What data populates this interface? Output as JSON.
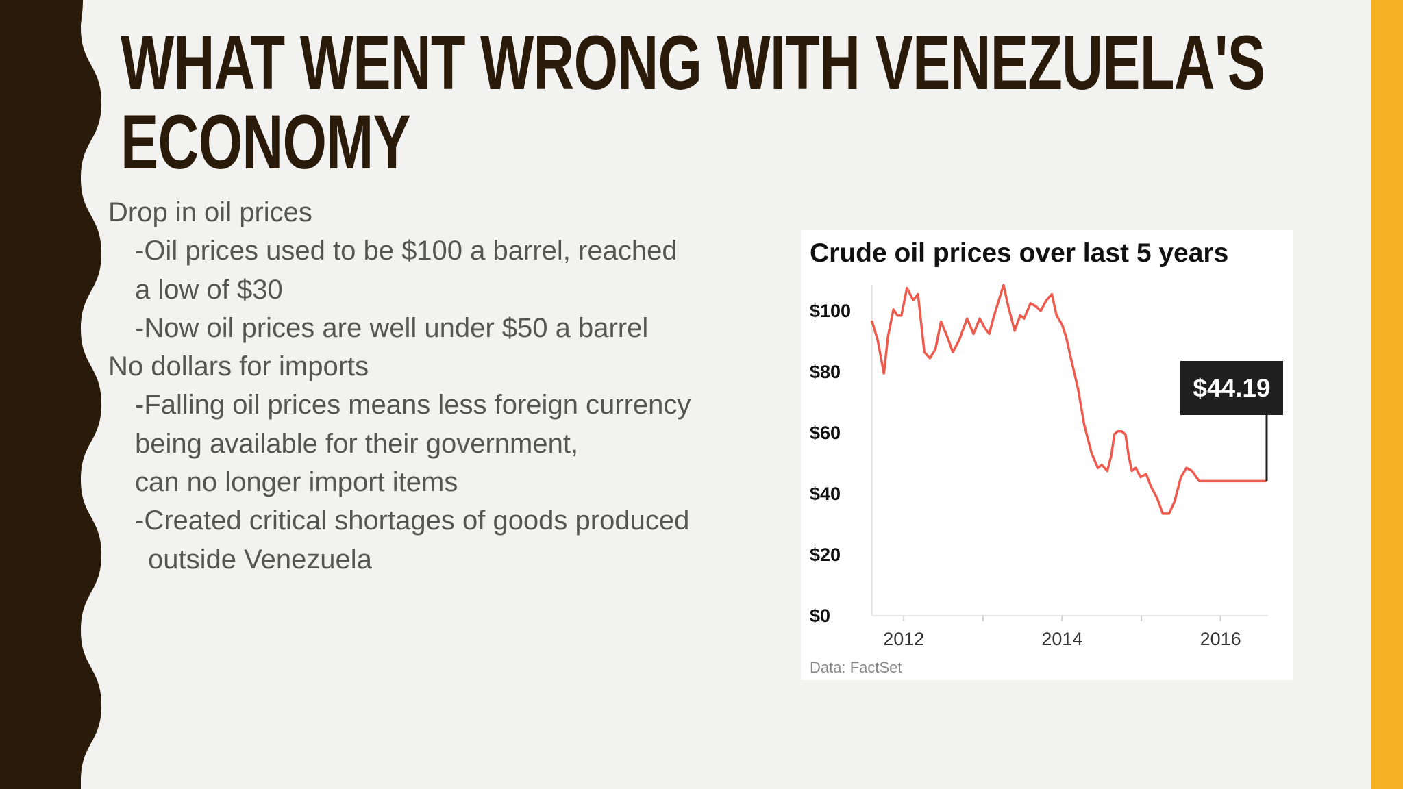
{
  "slide": {
    "title_lines": [
      "WHAT WENT WRONG WITH VENEZUELA'S",
      "ECONOMY"
    ],
    "bullets": [
      {
        "level": 0,
        "text": "Drop in oil prices"
      },
      {
        "level": 1,
        "text": "-Oil prices used to be $100 a barrel, reached"
      },
      {
        "level": 1,
        "text": "a low  of $30"
      },
      {
        "level": 1,
        "text": "-Now oil prices are well under $50 a barrel"
      },
      {
        "level": 0,
        "text": "No dollars for imports"
      },
      {
        "level": 1,
        "text": "-Falling oil prices means less foreign currency"
      },
      {
        "level": 1,
        "text": "being available for their government,"
      },
      {
        "level": 1,
        "text": "can no longer import items"
      },
      {
        "level": 1,
        "text": "-Created critical shortages of goods produced"
      },
      {
        "level": 2,
        "text": "outside Venezuela"
      }
    ],
    "colors": {
      "background": "#f2f2f1",
      "left_band": "#2a1a0a",
      "accent_stripe": "#f5b324",
      "title": "#2a1a0a",
      "body_text": "#555555"
    }
  },
  "chart_data": {
    "type": "line",
    "title": "Crude oil prices over last 5 years",
    "source": "Data: FactSet",
    "callout_label": "$44.19",
    "callout_value": 44.19,
    "xlabel": "",
    "ylabel": "",
    "x_ticks": [
      2012,
      2014,
      2016
    ],
    "y_ticks": [
      0,
      20,
      40,
      60,
      80,
      100
    ],
    "y_tick_labels": [
      "$0",
      "$20",
      "$40",
      "$60",
      "$80",
      "$100"
    ],
    "xlim": [
      2011.6,
      2016.6
    ],
    "ylim": [
      0,
      108
    ],
    "grid": false,
    "line_color": "#ee5a4e",
    "series": [
      {
        "x": [
          2011.6,
          2011.67,
          2011.75,
          2011.8,
          2011.87,
          2011.92,
          2011.97,
          2012.04,
          2012.12,
          2012.18,
          2012.26,
          2012.33,
          2012.4,
          2012.47,
          2012.55,
          2012.62,
          2012.7,
          2012.8,
          2012.88,
          2012.96,
          2013.02,
          2013.08,
          2013.13,
          2013.2,
          2013.26,
          2013.32,
          2013.4,
          2013.47,
          2013.52,
          2013.6,
          2013.67,
          2013.73,
          2013.8,
          2013.87,
          2013.93,
          2014.0,
          2014.05,
          2014.11,
          2014.2,
          2014.28,
          2014.37,
          2014.45,
          2014.5,
          2014.57,
          2014.62,
          2014.66,
          2014.7,
          2014.75,
          2014.8,
          2014.84,
          2014.88,
          2014.93,
          2014.99,
          2015.06,
          2015.12,
          2015.2,
          2015.27,
          2015.35,
          2015.42,
          2015.5,
          2015.57,
          2015.64,
          2015.73,
          2015.8,
          2015.87,
          2015.94,
          2016.02,
          2016.09,
          2016.17,
          2016.24,
          2016.33,
          2016.42,
          2016.5,
          2016.57
        ],
        "y": [
          96.5,
          90.5,
          79.5,
          91.5,
          100.5,
          98.5,
          98.5,
          107.5,
          103.5,
          105.5,
          86.5,
          84.5,
          87.5,
          96.5,
          91.5,
          86.5,
          90.5,
          97.5,
          92.5,
          97.5,
          94.5,
          92.5,
          97.5,
          103.5,
          108.5,
          101.5,
          93.5,
          98.5,
          97.5,
          102.5,
          101.5,
          100.0,
          103.5,
          105.5,
          98.5,
          95.5,
          91.5,
          84.5,
          74.5,
          62.5,
          53.5,
          48.5,
          49.5,
          47.5,
          52.5,
          59.5,
          60.5,
          60.5,
          59.5,
          52.5,
          47.5,
          48.5,
          45.5,
          46.5,
          42.5,
          38.5,
          33.5,
          33.5,
          37.5,
          45.5,
          48.5,
          47.5,
          44.19,
          44.19,
          44.19,
          44.19,
          44.19,
          44.19,
          44.19,
          44.19,
          44.19,
          44.19,
          44.19,
          44.19
        ]
      }
    ]
  }
}
